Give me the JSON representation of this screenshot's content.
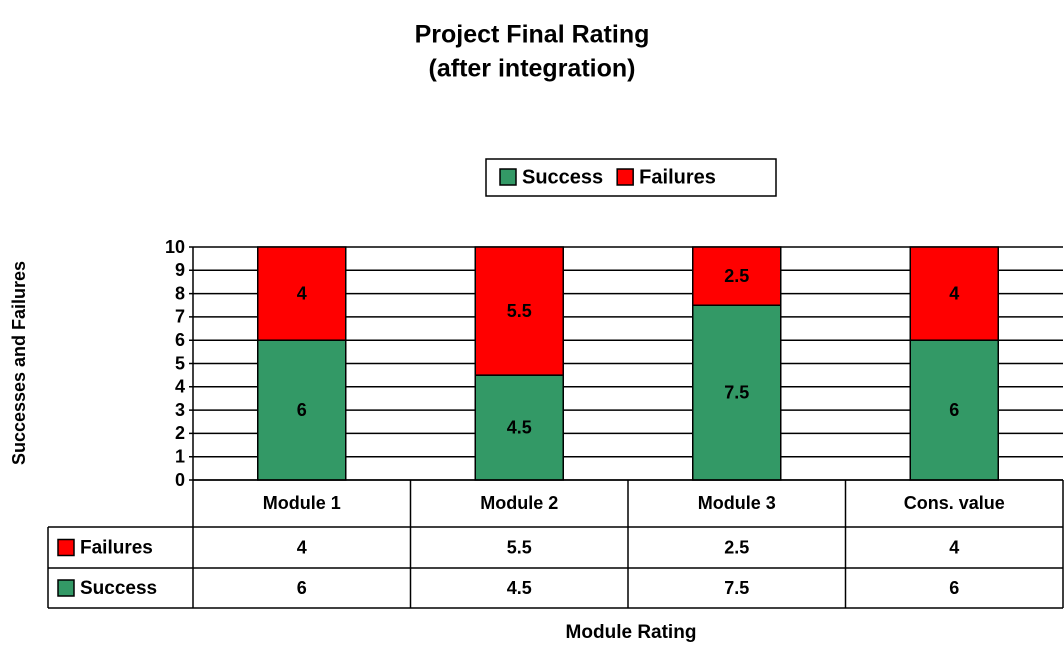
{
  "chart_data": {
    "type": "stacked_bar",
    "title": [
      "Project Final Rating",
      "(after integration)"
    ],
    "y_label": "Successes and Failures",
    "x_label": "Module Rating",
    "categories": [
      "Module 1",
      "Module 2",
      "Module 3",
      "Cons. value"
    ],
    "series": [
      {
        "name": "Success",
        "color": "#339966",
        "values": [
          6,
          4.5,
          7.5,
          6
        ]
      },
      {
        "name": "Failures",
        "color": "#ff0000",
        "values": [
          4,
          5.5,
          2.5,
          4
        ]
      }
    ],
    "ylim": [
      0,
      10
    ],
    "yticks": [
      0,
      1,
      2,
      3,
      4,
      5,
      6,
      7,
      8,
      9,
      10
    ],
    "grid": true,
    "legend": "top",
    "data_table": true
  }
}
